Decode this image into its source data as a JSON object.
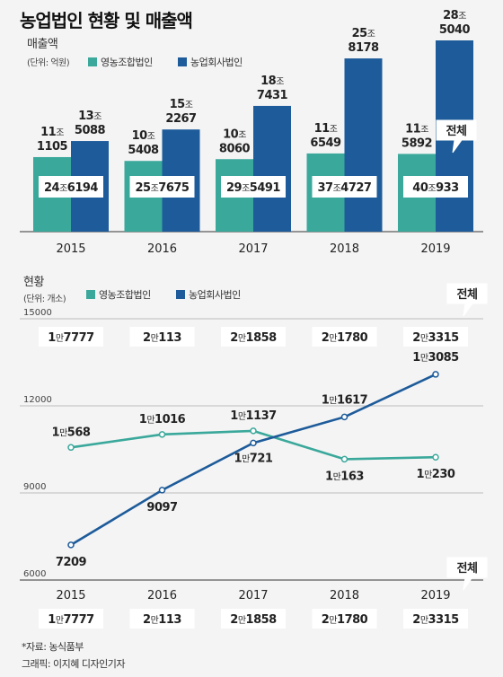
{
  "title": "농업법인 현황 및 매출액",
  "source": "*자료: 농식품부",
  "credit": "그래픽: 이지혜 디자인기자",
  "total_label": "전체",
  "colors": {
    "farm": "#3aa89b",
    "corp": "#1d5b9a",
    "axis": "#333333",
    "grid": "#bbbbbb"
  },
  "chart_data": [
    {
      "type": "bar",
      "title": "매출액",
      "unit_label": "(단위: 억원)",
      "categories": [
        "2015",
        "2016",
        "2017",
        "2018",
        "2019"
      ],
      "series": [
        {
          "name": "영농조합법인",
          "values": [
            111105,
            105408,
            108060,
            116549,
            115892
          ],
          "labels": [
            [
              "11조",
              "1105"
            ],
            [
              "10조",
              "5408"
            ],
            [
              "10조",
              "8060"
            ],
            [
              "11조",
              "6549"
            ],
            [
              "11조",
              "5892"
            ]
          ]
        },
        {
          "name": "농업회사법인",
          "values": [
            135088,
            152267,
            187431,
            258178,
            285040
          ],
          "labels": [
            [
              "13조",
              "5088"
            ],
            [
              "15조",
              "2267"
            ],
            [
              "18조",
              "7431"
            ],
            [
              "25조",
              "8178"
            ],
            [
              "28조",
              "5040"
            ]
          ]
        }
      ],
      "totals": [
        "24조6194",
        "25조7675",
        "29조5491",
        "37조4727",
        "40조933"
      ],
      "ylim": [
        0,
        285040
      ]
    },
    {
      "type": "line",
      "title": "현황",
      "unit_label": "(단위: 개소)",
      "x": [
        "2015",
        "2016",
        "2017",
        "2018",
        "2019"
      ],
      "yticks": [
        6000,
        9000,
        12000,
        15000
      ],
      "ylim": [
        6000,
        15000
      ],
      "series": [
        {
          "name": "영농조합법인",
          "values": [
            10568,
            11016,
            11137,
            10163,
            10230
          ],
          "labels": [
            "1만568",
            "1만1016",
            "1만1137",
            "1만163",
            "1만230"
          ]
        },
        {
          "name": "농업회사법인",
          "values": [
            7209,
            9097,
            10721,
            11617,
            13085
          ],
          "labels": [
            "7209",
            "9097",
            "1만721",
            "1만1617",
            "1만3085"
          ]
        }
      ],
      "totals": [
        "1만7777",
        "2만113",
        "2만1858",
        "2만1780",
        "2만3315"
      ]
    }
  ]
}
